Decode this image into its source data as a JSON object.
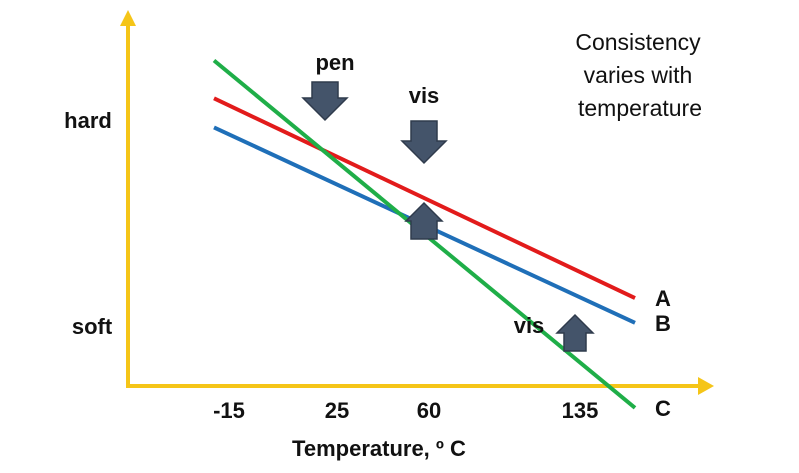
{
  "chart_data": {
    "type": "line",
    "xlabel": "Temperature, º C",
    "ylabel": "",
    "x_ticks": [
      "-15",
      "25",
      "60",
      "135"
    ],
    "y_ticks": [
      "soft",
      "hard"
    ],
    "annotation_text": [
      "Consistency",
      "varies with",
      "temperature"
    ],
    "series": [
      {
        "name": "A",
        "color": "#e21b1b",
        "x": [
          -15,
          135
        ],
        "y": [
          0.775,
          0.315
        ]
      },
      {
        "name": "B",
        "color": "#1f6fb8",
        "x": [
          -15,
          135
        ],
        "y": [
          0.695,
          0.245
        ]
      },
      {
        "name": "C",
        "color": "#1fae48",
        "x": [
          -15,
          135
        ],
        "y": [
          0.865,
          0.065
        ]
      }
    ],
    "markers": [
      {
        "label": "pen",
        "direction": "down",
        "x": 25
      },
      {
        "label": "vis",
        "direction": "down",
        "x": 60
      },
      {
        "label": "",
        "direction": "up",
        "x": 60
      },
      {
        "label": "vis",
        "direction": "up",
        "x": 130
      }
    ],
    "colors": {
      "axis": "#f5c518",
      "arrow_fill": "#44546a",
      "arrow_stroke": "#2f3b4c"
    }
  }
}
